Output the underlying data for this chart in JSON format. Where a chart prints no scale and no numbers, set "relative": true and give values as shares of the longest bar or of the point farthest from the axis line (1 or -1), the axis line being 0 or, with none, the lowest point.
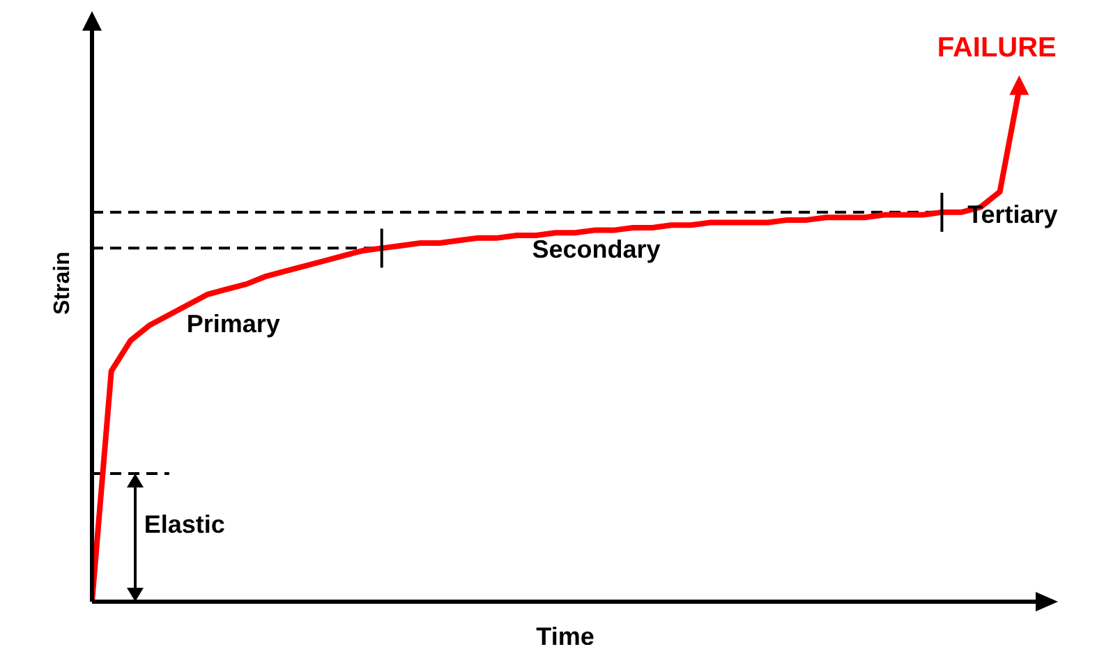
{
  "chart_data": {
    "type": "line",
    "relative": true,
    "xlabel": "Time",
    "ylabel": "Strain",
    "categories": [
      null,
      null,
      null,
      null,
      null,
      null,
      null,
      null,
      null,
      null,
      null,
      null,
      null,
      null,
      null,
      null,
      null,
      null,
      null,
      null,
      null,
      null,
      null,
      null,
      null,
      null,
      null,
      null,
      null,
      null,
      null,
      null,
      null,
      null,
      null,
      null,
      null,
      null,
      null,
      null,
      null,
      null,
      null,
      null,
      null,
      null,
      null,
      null,
      null
    ],
    "series": [
      {
        "color": "#ff0000",
        "values": [
          0,
          0.45,
          0.51,
          0.54,
          0.56,
          0.58,
          0.6,
          0.61,
          0.62,
          0.635,
          0.645,
          0.655,
          0.665,
          0.675,
          0.685,
          0.69,
          0.695,
          0.7,
          0.7,
          0.705,
          0.71,
          0.71,
          0.715,
          0.715,
          0.72,
          0.72,
          0.725,
          0.725,
          0.73,
          0.73,
          0.735,
          0.735,
          0.74,
          0.74,
          0.74,
          0.74,
          0.745,
          0.745,
          0.75,
          0.75,
          0.75,
          0.755,
          0.755,
          0.755,
          0.76,
          0.76,
          0.77,
          0.8,
          1.0
        ]
      }
    ],
    "ref_lines": [
      {
        "axis": "y",
        "value": 0.25,
        "line_style": "dashed",
        "color": "#000000"
      },
      {
        "axis": "y",
        "value": 0.69,
        "line_style": "dashed",
        "color": "#000000"
      },
      {
        "axis": "y",
        "value": 0.76,
        "line_style": "dashed",
        "color": "#000000"
      }
    ],
    "annotations": [
      "FAILURE",
      "Primary",
      "Secondary",
      "Tertiary",
      "Elastic"
    ]
  }
}
